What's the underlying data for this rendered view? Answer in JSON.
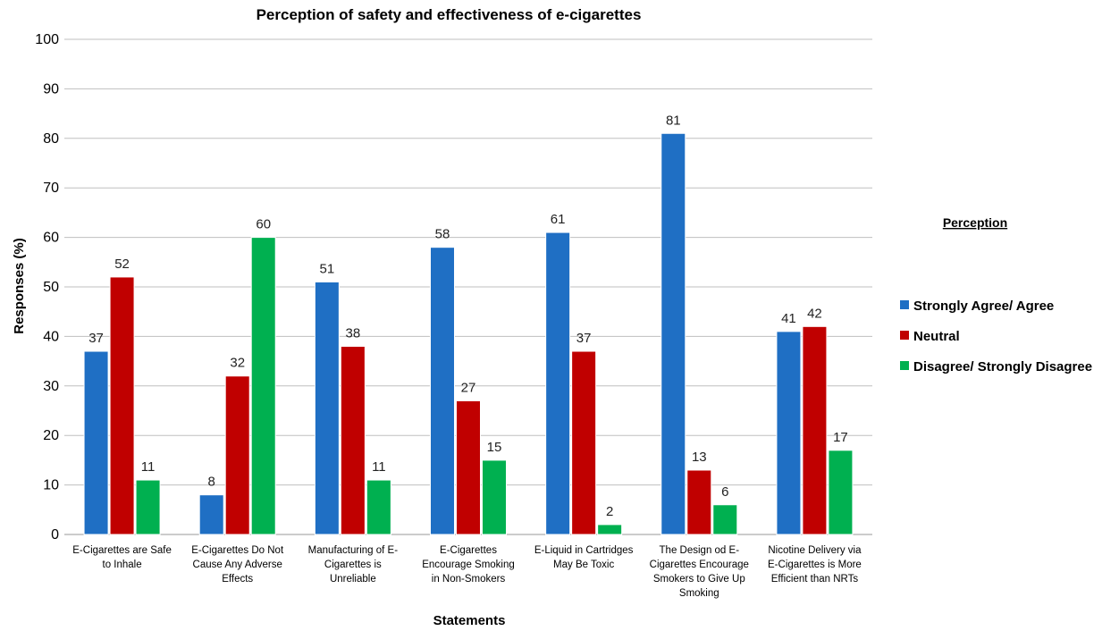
{
  "chart_data": {
    "type": "bar",
    "title": "Perception of safety and effectiveness of e-cigarettes",
    "xlabel": "Statements",
    "ylabel": "Responses (%)",
    "ylim": [
      0,
      100
    ],
    "yticks": [
      0,
      10,
      20,
      30,
      40,
      50,
      60,
      70,
      80,
      90,
      100
    ],
    "grid": true,
    "legend_title": "Perception",
    "legend_position": "right",
    "categories": [
      [
        "E-Cigarettes are Safe",
        "to Inhale"
      ],
      [
        "E-Cigarettes Do Not",
        "Cause Any Adverse",
        "Effects"
      ],
      [
        "Manufacturing of E-",
        "Cigarettes is",
        "Unreliable"
      ],
      [
        "E-Cigarettes",
        "Encourage Smoking",
        "in Non-Smokers"
      ],
      [
        "E-Liquid in Cartridges",
        "May Be Toxic"
      ],
      [
        "The Design od E-",
        "Cigarettes Encourage",
        "Smokers to Give Up",
        "Smoking"
      ],
      [
        "Nicotine Delivery via",
        "E-Cigarettes is More",
        "Efficient than NRTs"
      ]
    ],
    "series": [
      {
        "name": "Strongly Agree/ Agree",
        "color": "#1f6fc4",
        "values": [
          37,
          8,
          51,
          58,
          61,
          81,
          41
        ]
      },
      {
        "name": "Neutral",
        "color": "#c00000",
        "values": [
          52,
          32,
          38,
          27,
          37,
          13,
          42
        ]
      },
      {
        "name": "Disagree/ Strongly Disagree",
        "color": "#00b050",
        "values": [
          11,
          60,
          11,
          15,
          2,
          6,
          17
        ]
      }
    ]
  }
}
